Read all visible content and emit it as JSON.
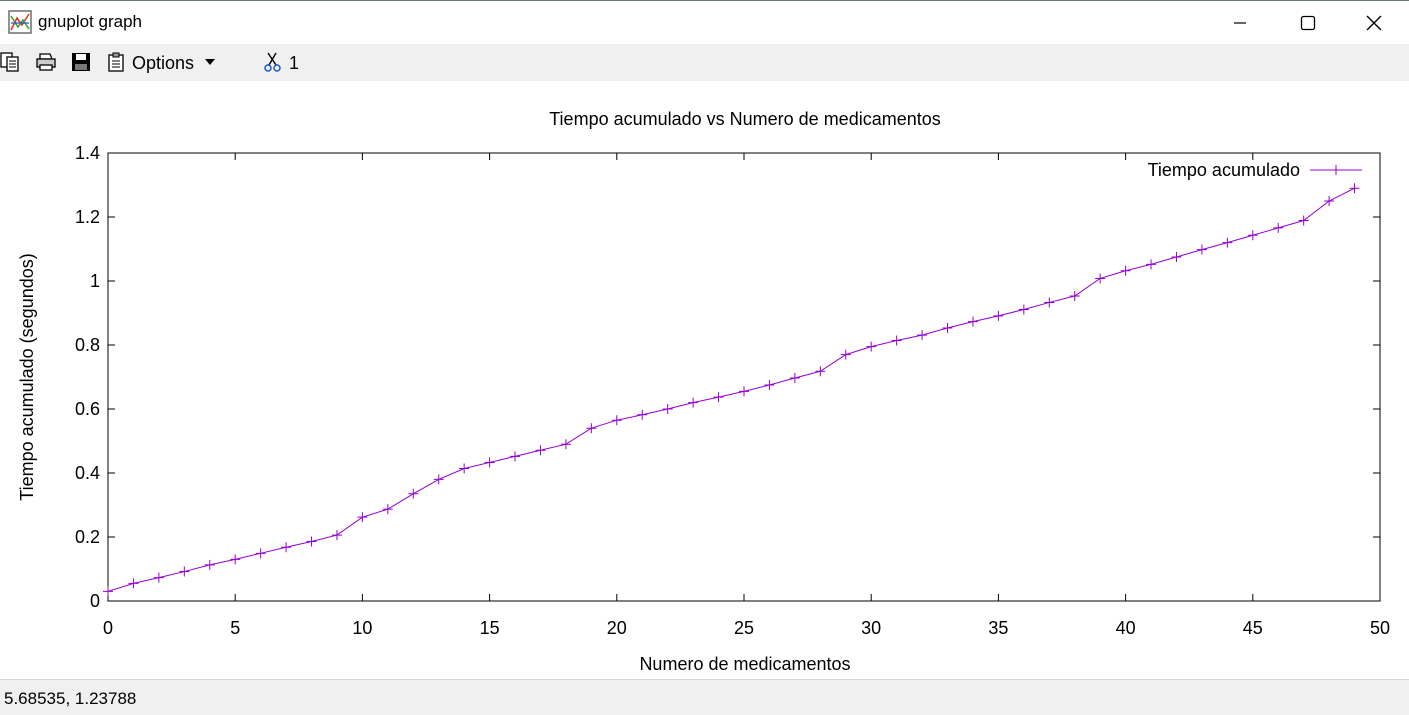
{
  "window": {
    "title": "gnuplot graph"
  },
  "toolbar": {
    "options_label": "Options",
    "cut_count": "1",
    "icons": [
      "copy-icon",
      "print-icon",
      "save-icon",
      "clipboard-icon",
      "scissors-icon"
    ]
  },
  "status": {
    "coords": "5.68535,  1.23788"
  },
  "colors": {
    "series": "#9400d3",
    "toolbar_bg": "#f0f0f0"
  },
  "chart_data": {
    "type": "line",
    "title": "Tiempo acumulado vs Numero de medicamentos",
    "xlabel": "Numero de medicamentos",
    "ylabel": "Tiempo acumulado (segundos)",
    "xlim": [
      0,
      50
    ],
    "ylim": [
      0,
      1.4
    ],
    "xticks": [
      "0",
      "5",
      "10",
      "15",
      "20",
      "25",
      "30",
      "35",
      "40",
      "45",
      "50"
    ],
    "yticks": [
      "0",
      "0.2",
      "0.4",
      "0.6",
      "0.8",
      "1",
      "1.2",
      "1.4"
    ],
    "legend_position": "top-right",
    "grid": false,
    "series": [
      {
        "name": "Tiempo acumulado",
        "x": [
          0,
          1,
          2,
          3,
          4,
          5,
          6,
          7,
          8,
          9,
          10,
          11,
          12,
          13,
          14,
          15,
          16,
          17,
          18,
          19,
          20,
          21,
          22,
          23,
          24,
          25,
          26,
          27,
          28,
          29,
          30,
          31,
          32,
          33,
          34,
          35,
          36,
          37,
          38,
          39,
          40,
          41,
          42,
          43,
          44,
          45,
          46,
          47,
          48,
          49
        ],
        "y": [
          0.03,
          0.055,
          0.073,
          0.092,
          0.113,
          0.13,
          0.149,
          0.168,
          0.186,
          0.206,
          0.262,
          0.287,
          0.335,
          0.38,
          0.414,
          0.433,
          0.452,
          0.471,
          0.49,
          0.54,
          0.565,
          0.582,
          0.6,
          0.62,
          0.637,
          0.655,
          0.675,
          0.697,
          0.718,
          0.77,
          0.795,
          0.814,
          0.831,
          0.853,
          0.873,
          0.891,
          0.911,
          0.933,
          0.953,
          1.008,
          1.032,
          1.052,
          1.075,
          1.098,
          1.12,
          1.143,
          1.166,
          1.189,
          1.25,
          1.29
        ]
      }
    ]
  }
}
